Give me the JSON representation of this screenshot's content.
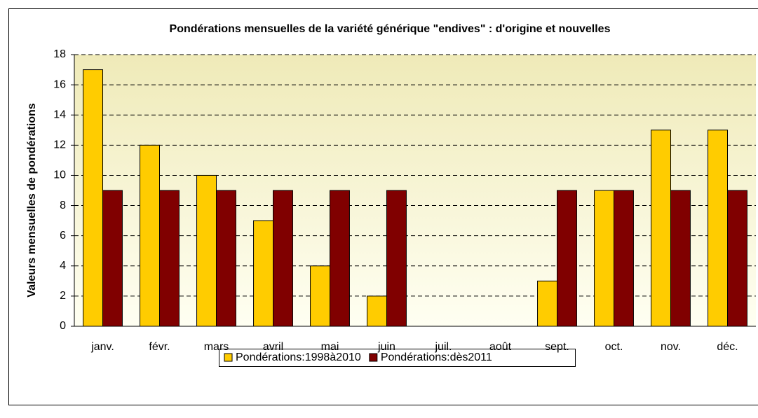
{
  "chart_data": {
    "type": "bar",
    "title": "Pondérations mensuelles de la variété générique \"endives\" : d'origine et nouvelles",
    "y_label": "Valeurs mensuelles de pondérations",
    "categories": [
      "janv.",
      "févr.",
      "mars",
      "avril",
      "mai",
      "juin",
      "juil.",
      "août",
      "sept.",
      "oct.",
      "nov.",
      "déc."
    ],
    "series": [
      {
        "name": "Pondérations:1998à2010",
        "color": "#ffcc00",
        "values": [
          17,
          12,
          10,
          7,
          4,
          2,
          0,
          0,
          3,
          9,
          13,
          13
        ]
      },
      {
        "name": "Pondérations:dès2011",
        "color": "#800000",
        "values": [
          9,
          9,
          9,
          9,
          9,
          9,
          0,
          0,
          9,
          9,
          9,
          9
        ]
      }
    ],
    "ylim": [
      0,
      18
    ],
    "yticks": [
      0,
      2,
      4,
      6,
      8,
      10,
      12,
      14,
      16,
      18
    ],
    "grid": true,
    "legend": "bottom"
  }
}
